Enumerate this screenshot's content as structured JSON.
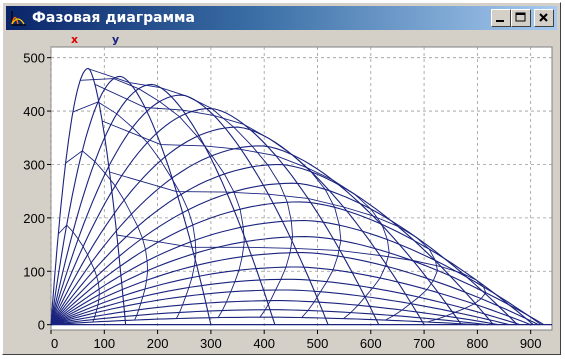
{
  "window": {
    "title": "Фазовая диаграмма",
    "title_bar_color": "#0a246a",
    "chrome_color": "#d4d0c8",
    "app_icon": "phase-plot-icon",
    "buttons": [
      {
        "name": "minimize",
        "icon": "minimize-icon"
      },
      {
        "name": "maximize",
        "icon": "maximize-icon"
      },
      {
        "name": "close",
        "icon": "close-icon"
      }
    ]
  },
  "legend": {
    "items": [
      {
        "label": "x",
        "color": "#e00000"
      },
      {
        "label": "y",
        "color": "#1a237e"
      }
    ]
  },
  "chart_data": {
    "type": "line",
    "title": "",
    "xlabel": "",
    "ylabel": "",
    "xlim": [
      0,
      940
    ],
    "ylim": [
      -10,
      520
    ],
    "x_ticks": [
      "0",
      "100",
      "200",
      "300",
      "400",
      "500",
      "600",
      "700",
      "800",
      "900"
    ],
    "y_ticks": [
      "0",
      "100",
      "200",
      "300",
      "400",
      "500"
    ],
    "grid": true,
    "line_color": "#1a237e",
    "description_of_families": "Trajectory arcs from origin for launch angles; iso-time curves cross them",
    "trajectories": [
      {
        "range": 140,
        "apex_x": 70,
        "apex_y": 480
      },
      {
        "range": 300,
        "apex_x": 130,
        "apex_y": 465
      },
      {
        "range": 420,
        "apex_x": 190,
        "apex_y": 450
      },
      {
        "range": 520,
        "apex_x": 245,
        "apex_y": 430
      },
      {
        "range": 615,
        "apex_x": 300,
        "apex_y": 405
      },
      {
        "range": 700,
        "apex_x": 350,
        "apex_y": 370
      },
      {
        "range": 770,
        "apex_x": 395,
        "apex_y": 335
      },
      {
        "range": 830,
        "apex_x": 430,
        "apex_y": 300
      },
      {
        "range": 875,
        "apex_x": 455,
        "apex_y": 265
      },
      {
        "range": 905,
        "apex_x": 470,
        "apex_y": 230
      },
      {
        "range": 920,
        "apex_x": 478,
        "apex_y": 195
      },
      {
        "range": 925,
        "apex_x": 480,
        "apex_y": 165
      },
      {
        "range": 915,
        "apex_x": 472,
        "apex_y": 135
      },
      {
        "range": 900,
        "apex_x": 462,
        "apex_y": 108
      },
      {
        "range": 880,
        "apex_x": 450,
        "apex_y": 85
      },
      {
        "range": 860,
        "apex_x": 440,
        "apex_y": 65
      },
      {
        "range": 840,
        "apex_x": 430,
        "apex_y": 45
      },
      {
        "range": 820,
        "apex_x": 420,
        "apex_y": 28
      },
      {
        "range": 800,
        "apex_x": 410,
        "apex_y": 14
      }
    ],
    "isochrone_ends": [
      140,
      305,
      450,
      600,
      700,
      800,
      880,
      925
    ]
  }
}
